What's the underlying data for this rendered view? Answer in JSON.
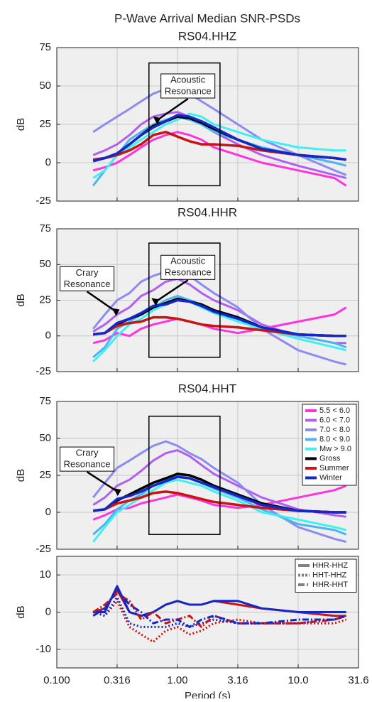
{
  "title": "P-Wave Arrival Median SNR-PSDs",
  "chart_data": [
    {
      "type": "line",
      "title": "RS04.HHZ",
      "ylabel": "dB",
      "xscale": "log",
      "grid": true,
      "xlim": [
        0.1,
        31.6
      ],
      "xticks": [
        0.1,
        0.316,
        1,
        3.16,
        10,
        31.6
      ],
      "ylim": [
        -25,
        75
      ],
      "yticks": [
        -25,
        0,
        25,
        50,
        75
      ],
      "annotations": [
        {
          "text": [
            "Acoustic",
            "Resonance"
          ]
        }
      ],
      "x": [
        0.2,
        0.25,
        0.316,
        0.4,
        0.5,
        0.63,
        0.8,
        1.0,
        1.26,
        1.58,
        2.0,
        3.16,
        5,
        10,
        20,
        25
      ],
      "series": [
        {
          "color": "#ff33dd",
          "values": [
            -5,
            -3,
            0,
            5,
            10,
            15,
            18,
            20,
            18,
            15,
            10,
            5,
            0,
            -5,
            -10,
            -15
          ]
        },
        {
          "color": "#b060f0",
          "values": [
            5,
            8,
            12,
            18,
            25,
            30,
            32,
            33,
            30,
            26,
            20,
            12,
            5,
            -2,
            -8,
            -10
          ]
        },
        {
          "color": "#8c8cf0",
          "values": [
            20,
            25,
            30,
            35,
            40,
            45,
            48,
            50,
            45,
            40,
            35,
            25,
            15,
            5,
            -5,
            -8
          ]
        },
        {
          "color": "#4cb4f0",
          "values": [
            -15,
            -5,
            5,
            15,
            20,
            25,
            28,
            30,
            28,
            25,
            20,
            15,
            10,
            5,
            0,
            -2
          ]
        },
        {
          "color": "#40f0f0",
          "values": [
            -10,
            -5,
            5,
            10,
            15,
            20,
            25,
            28,
            32,
            30,
            25,
            20,
            15,
            10,
            8,
            8
          ]
        },
        {
          "color": "#000000",
          "values": [
            2,
            3,
            6,
            12,
            18,
            24,
            27,
            30,
            29,
            26,
            22,
            15,
            9,
            5,
            3,
            2
          ]
        },
        {
          "color": "#c81414",
          "values": [
            2,
            3,
            5,
            8,
            12,
            18,
            20,
            17,
            14,
            12,
            12,
            11,
            8,
            5,
            3,
            2
          ]
        },
        {
          "color": "#1428c8",
          "values": [
            1,
            3,
            6,
            12,
            18,
            23,
            27,
            31,
            30,
            27,
            23,
            15,
            9,
            5,
            3,
            2
          ]
        }
      ]
    },
    {
      "type": "line",
      "title": "RS04.HHR",
      "ylabel": "dB",
      "xscale": "log",
      "grid": true,
      "xlim": [
        0.1,
        31.6
      ],
      "xticks": [
        0.1,
        0.316,
        1,
        3.16,
        10,
        31.6
      ],
      "ylim": [
        -25,
        75
      ],
      "yticks": [
        -25,
        0,
        25,
        50,
        75
      ],
      "annotations": [
        {
          "text": [
            "Acoustic",
            "Resonance"
          ]
        },
        {
          "text": [
            "Crary",
            "Resonance"
          ]
        }
      ],
      "x": [
        0.2,
        0.25,
        0.316,
        0.4,
        0.5,
        0.63,
        0.8,
        1.0,
        1.26,
        1.58,
        2.0,
        3.16,
        5,
        10,
        20,
        25
      ],
      "series": [
        {
          "color": "#ff33dd",
          "values": [
            -5,
            -3,
            2,
            0,
            5,
            8,
            10,
            12,
            10,
            8,
            5,
            2,
            5,
            10,
            15,
            20
          ]
        },
        {
          "color": "#b060f0",
          "values": [
            3,
            8,
            15,
            20,
            28,
            32,
            38,
            40,
            36,
            30,
            25,
            18,
            8,
            0,
            -5,
            -5
          ]
        },
        {
          "color": "#8c8cf0",
          "values": [
            5,
            15,
            25,
            30,
            38,
            42,
            45,
            45,
            42,
            36,
            30,
            20,
            5,
            -10,
            -18,
            -20
          ]
        },
        {
          "color": "#4cb4f0",
          "values": [
            -15,
            -8,
            5,
            10,
            15,
            20,
            25,
            28,
            25,
            22,
            18,
            12,
            5,
            0,
            -5,
            -8
          ]
        },
        {
          "color": "#40f0f0",
          "values": [
            -18,
            -10,
            0,
            8,
            12,
            18,
            22,
            26,
            24,
            20,
            16,
            10,
            5,
            -2,
            -8,
            -10
          ]
        },
        {
          "color": "#000000",
          "values": [
            1,
            2,
            8,
            12,
            15,
            20,
            23,
            26,
            24,
            22,
            18,
            13,
            6,
            1,
            0,
            0
          ]
        },
        {
          "color": "#c81414",
          "values": [
            1,
            2,
            7,
            9,
            10,
            13,
            13,
            12,
            10,
            8,
            7,
            6,
            4,
            1,
            0,
            0
          ]
        },
        {
          "color": "#1428c8",
          "values": [
            1,
            2,
            9,
            12,
            16,
            21,
            22,
            25,
            24,
            21,
            17,
            12,
            6,
            1,
            0,
            0
          ]
        }
      ]
    },
    {
      "type": "line",
      "title": "RS04.HHT",
      "ylabel": "dB",
      "xscale": "log",
      "grid": true,
      "xlim": [
        0.1,
        31.6
      ],
      "xticks": [
        0.1,
        0.316,
        1,
        3.16,
        10,
        31.6
      ],
      "ylim": [
        -25,
        75
      ],
      "yticks": [
        -25,
        0,
        25,
        50,
        75
      ],
      "annotations": [
        {
          "text": [
            "Crary",
            "Resonance"
          ]
        }
      ],
      "legend": "upper right",
      "x": [
        0.2,
        0.25,
        0.316,
        0.4,
        0.5,
        0.63,
        0.8,
        1.0,
        1.26,
        1.58,
        2.0,
        3.16,
        5,
        10,
        20,
        25
      ],
      "series": [
        {
          "name": "5.5 < 6.0",
          "color": "#ff33dd",
          "values": [
            -5,
            -2,
            2,
            3,
            6,
            8,
            10,
            12,
            10,
            8,
            5,
            3,
            5,
            10,
            15,
            18
          ]
        },
        {
          "name": "6.0 < 7.0",
          "color": "#b060f0",
          "values": [
            5,
            10,
            18,
            22,
            28,
            35,
            40,
            42,
            38,
            32,
            26,
            18,
            10,
            2,
            -2,
            -3
          ]
        },
        {
          "name": "7.0 < 8.0",
          "color": "#8c8cf0",
          "values": [
            10,
            20,
            30,
            35,
            40,
            45,
            48,
            45,
            40,
            36,
            30,
            20,
            5,
            -10,
            -18,
            -20
          ]
        },
        {
          "name": "8.0 < 9.0",
          "color": "#4cb4f0",
          "values": [
            -15,
            -8,
            2,
            8,
            12,
            18,
            22,
            25,
            23,
            20,
            16,
            10,
            2,
            -8,
            -12,
            -15
          ]
        },
        {
          "name": "Mw > 9.0",
          "color": "#40f0f0",
          "values": [
            -20,
            -10,
            0,
            5,
            10,
            15,
            20,
            22,
            20,
            18,
            14,
            8,
            0,
            -5,
            -10,
            -12
          ]
        },
        {
          "name": "Gross",
          "color": "#000000",
          "values": [
            1,
            2,
            8,
            12,
            16,
            20,
            23,
            26,
            25,
            22,
            18,
            12,
            6,
            1,
            0,
            0
          ]
        },
        {
          "name": "Summer",
          "color": "#c81414",
          "values": [
            1,
            2,
            6,
            8,
            10,
            13,
            14,
            13,
            11,
            9,
            7,
            5,
            3,
            1,
            0,
            0
          ]
        },
        {
          "name": "Winter",
          "color": "#1428c8",
          "values": [
            1,
            2,
            9,
            11,
            14,
            18,
            21,
            24,
            23,
            20,
            17,
            11,
            5,
            1,
            0,
            0
          ]
        }
      ]
    },
    {
      "type": "line",
      "ylabel": "dB",
      "xlabel": "Period (s)",
      "xscale": "log",
      "grid": true,
      "xlim": [
        0.1,
        31.6
      ],
      "xticks": [
        {
          "value": 0.1,
          "label": "0.100"
        },
        0.316,
        {
          "value": 1,
          "label": "1.00"
        },
        3.16,
        {
          "value": 10,
          "label": "10.0"
        },
        31.6
      ],
      "ylim": [
        -15,
        15
      ],
      "yticks": [
        -10,
        0,
        10
      ],
      "legend": "upper right",
      "x": [
        0.2,
        0.25,
        0.316,
        0.4,
        0.5,
        0.63,
        0.8,
        1.0,
        1.26,
        1.58,
        2.0,
        3.16,
        5,
        10,
        20,
        25
      ],
      "series": [
        {
          "name": "HHR-HHZ",
          "color": "#808080",
          "style": "solid",
          "lines": [
            {
              "color": "#c81414",
              "values": [
                0,
                1,
                6,
                0,
                -1,
                0,
                2,
                3,
                2,
                2,
                3,
                2,
                1,
                0,
                -1,
                -1
              ]
            },
            {
              "color": "#1428c8",
              "values": [
                0,
                0,
                7,
                0,
                -1,
                0,
                2,
                3,
                2,
                2,
                3,
                3,
                1,
                0,
                0,
                0
              ]
            }
          ]
        },
        {
          "name": "HHT-HHZ",
          "color": "#808080",
          "style": "dotted",
          "lines": [
            {
              "color": "#c81414",
              "values": [
                0,
                -1,
                3,
                -4,
                -6,
                -8,
                -5,
                -4,
                -6,
                -5,
                -3,
                -2,
                -3,
                -3,
                -3,
                -2
              ]
            },
            {
              "color": "#1428c8",
              "values": [
                0,
                -1,
                4,
                -3,
                -4,
                -4,
                -4,
                -3,
                -4,
                -3,
                -2,
                -3,
                -3,
                -3,
                -2,
                -1
              ]
            }
          ]
        },
        {
          "name": "HHR-HHT",
          "color": "#808080",
          "style": "dashdot",
          "lines": [
            {
              "color": "#c81414",
              "values": [
                0,
                2,
                5,
                3,
                -2,
                0,
                -3,
                -2,
                -1,
                -4,
                -1,
                -3,
                -3,
                -3,
                -2,
                -1
              ]
            },
            {
              "color": "#1428c8",
              "values": [
                -1,
                1,
                6,
                2,
                0,
                -3,
                -2,
                -2,
                -4,
                -2,
                -1,
                -3,
                -3,
                -2,
                -2,
                -1
              ]
            }
          ]
        }
      ]
    }
  ]
}
